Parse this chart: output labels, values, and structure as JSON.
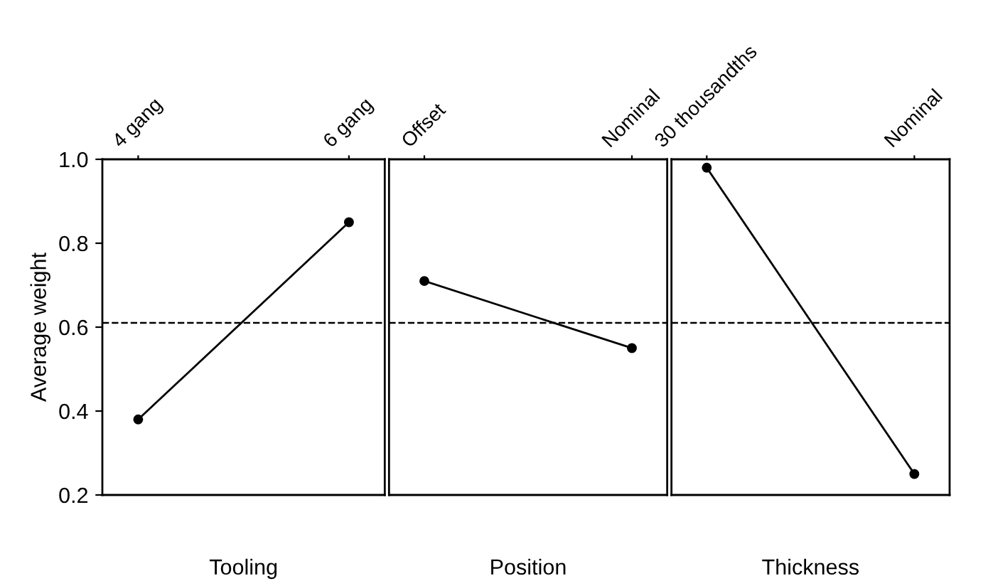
{
  "chart_data": [
    {
      "type": "line",
      "xlabel": "Tooling",
      "ylabel": "Average weight",
      "categories": [
        "4 gang",
        "6 gang"
      ],
      "values": [
        0.38,
        0.85
      ],
      "color": "#000000",
      "marker": "circle",
      "line_style": "solid",
      "ylim": [
        0.2,
        1.0
      ],
      "yticks": [
        {
          "value": 0.2,
          "label": "0.2"
        },
        {
          "value": 0.4,
          "label": "0.4"
        },
        {
          "value": 0.6,
          "label": "0.6"
        },
        {
          "value": 0.8,
          "label": "0.8"
        },
        {
          "value": 1.0,
          "label": "1.0"
        }
      ],
      "grid": false,
      "ref_lines": [
        {
          "axis": "y",
          "value": 0.61,
          "line_style": "dashed",
          "color": "#000000"
        }
      ]
    },
    {
      "type": "line",
      "xlabel": "Position",
      "categories": [
        "Offset",
        "Nominal"
      ],
      "values": [
        0.71,
        0.55
      ],
      "color": "#000000",
      "marker": "circle",
      "line_style": "solid",
      "ylim": [
        0.2,
        1.0
      ],
      "tick_labels": "x",
      "grid": false,
      "ref_lines": [
        {
          "axis": "y",
          "value": 0.61,
          "line_style": "dashed",
          "color": "#000000"
        }
      ]
    },
    {
      "type": "line",
      "xlabel": "Thickness",
      "categories": [
        "30 thousandths",
        "Nominal"
      ],
      "values": [
        0.98,
        0.25
      ],
      "color": "#000000",
      "marker": "circle",
      "line_style": "solid",
      "ylim": [
        0.2,
        1.0
      ],
      "tick_labels": "x",
      "grid": false,
      "ref_lines": [
        {
          "axis": "y",
          "value": 0.61,
          "line_style": "dashed",
          "color": "#000000"
        }
      ]
    }
  ]
}
